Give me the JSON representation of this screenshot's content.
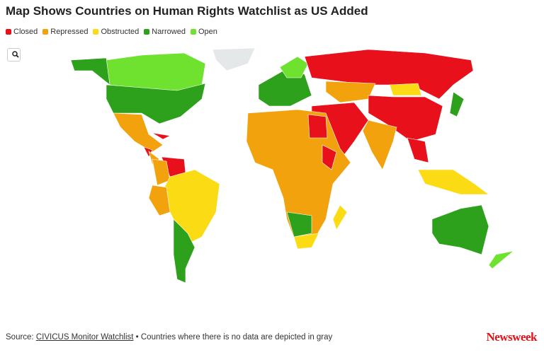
{
  "header": {
    "title": "Map Shows Countries on Human Rights Watchlist as US Added"
  },
  "legend": [
    {
      "label": "Closed",
      "color": "#e8101a"
    },
    {
      "label": "Repressed",
      "color": "#f2a20c"
    },
    {
      "label": "Obstructed",
      "color": "#fbdc14"
    },
    {
      "label": "Narrowed",
      "color": "#2ea11c"
    },
    {
      "label": "Open",
      "color": "#6fe22f"
    }
  ],
  "footer": {
    "source_label": "Source:",
    "source_link": "CIVICUS Monitor Watchlist",
    "note": "• Countries where there is no data are depicted in gray"
  },
  "logo": "Newsweek"
}
